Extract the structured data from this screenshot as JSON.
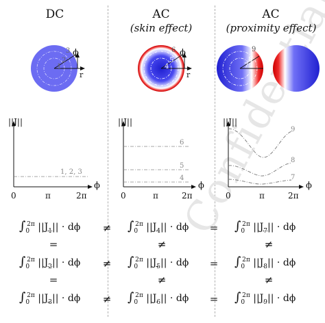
{
  "columns": [
    {
      "title": "DC",
      "subtitle": ""
    },
    {
      "title": "AC",
      "subtitle": "(skin effect)"
    },
    {
      "title": "AC",
      "subtitle": "(proximity effect)"
    }
  ],
  "cross_section": {
    "dc_labels": [
      "1",
      "2",
      "3"
    ],
    "skin_labels": [
      "4",
      "5",
      "6"
    ],
    "prox_labels": [
      "7",
      "8",
      "9"
    ],
    "phi": "ϕ",
    "r": "r"
  },
  "plots": {
    "ylabel": "||J||",
    "xlabel": "ϕ",
    "xticks": [
      "0",
      "π",
      "2π"
    ],
    "dc_curve_label": "1, 2, 3",
    "skin_labels": [
      "6",
      "5",
      "4"
    ],
    "prox_labels": [
      "9",
      "8",
      "7"
    ]
  },
  "equations": {
    "rows": [
      [
        "∫₀²ᵖ ||J₁|| · dϕ",
        "∫₀²ᵖ ||J₄|| · dϕ",
        "∫₀²ᵖ ||J₇|| · dϕ"
      ],
      [
        "∫₀²ᵖ ||J₂|| · dϕ",
        "∫₀²ᵖ ||J₅|| · dϕ",
        "∫₀²ᵖ ||J₈|| · dϕ"
      ],
      [
        "∫₀²ᵖ ||J₃|| · dϕ",
        "∫₀²ᵖ ||J₆|| · dϕ",
        "∫₀²ᵖ ||J₉|| · dϕ"
      ]
    ],
    "int_parts": {
      "lower": "0",
      "upper": "2π",
      "diff": "dϕ",
      "dot": "·"
    },
    "row_rel": [
      "≠",
      "≠",
      "≠"
    ],
    "row_rel2": [
      "=",
      "=",
      "="
    ],
    "between_rows": [
      [
        "=",
        "≠",
        "≠"
      ],
      [
        "=",
        "≠",
        "≠"
      ]
    ]
  },
  "watermark": "Confidential"
}
